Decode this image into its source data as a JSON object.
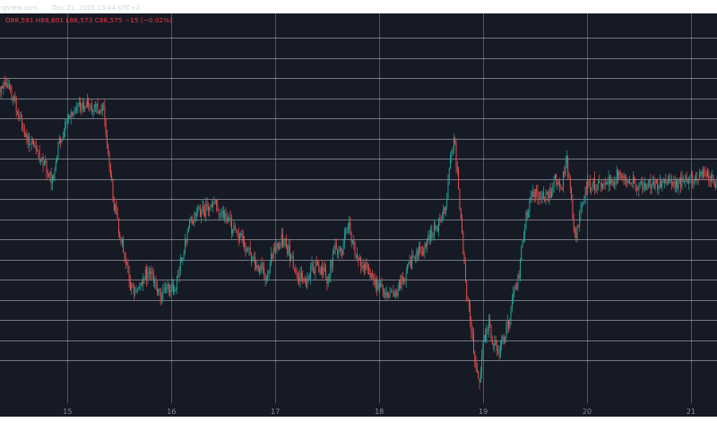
{
  "header": {
    "source": "dingView.com,",
    "datetime": "Dec 21, 2025 13:44 UTC+2",
    "ohlc": "O88,591  H88,601  L88,573  C88,575  −15 (−0.02%)"
  },
  "colors": {
    "background": "#161a25",
    "grid": "#bfc3cc",
    "up": "#26a69a",
    "down": "#ef5350",
    "axis_text": "#868993",
    "ohlc_text": "#f23645"
  },
  "chart_data": {
    "type": "line",
    "title": "",
    "xlabel": "",
    "ylabel": "",
    "x_ticks": [
      "15",
      "16",
      "17",
      "18",
      "19",
      "20",
      "21"
    ],
    "x_unit": "day of month (Dec 2025)",
    "x_range": [
      14.35,
      21.25
    ],
    "y_range": [
      -5.3,
      43.0
    ],
    "y_note": "price tick labels are not visible in the screenshot; values are relative levels read against the horizontal gridlines",
    "grid": true,
    "series": [
      {
        "x": [
          14.35,
          14.45,
          14.55,
          14.62,
          14.7,
          14.78,
          14.85,
          14.92,
          15.0,
          15.1,
          15.17,
          15.22,
          15.27,
          15.35,
          15.45,
          15.55,
          15.6,
          15.64,
          15.7,
          15.75,
          15.8,
          15.85,
          15.9,
          15.96,
          16.03,
          16.1,
          16.18,
          16.25,
          16.32,
          16.4,
          16.5,
          16.6,
          16.7,
          16.8,
          16.9,
          16.98,
          17.05,
          17.12,
          17.2,
          17.28,
          17.35,
          17.42,
          17.5,
          17.58,
          17.64,
          17.68,
          17.71,
          17.74,
          17.78,
          17.82,
          17.9,
          17.98,
          18.05,
          18.12,
          18.2,
          18.28,
          18.35,
          18.42,
          18.5,
          18.58,
          18.64,
          18.68,
          18.72,
          18.76,
          18.8,
          18.84,
          18.88,
          18.92,
          18.96,
          19.0,
          19.05,
          19.1,
          19.15,
          19.2,
          19.25,
          19.3,
          19.35,
          19.4,
          19.45,
          19.5,
          19.55,
          19.6,
          19.65,
          19.7,
          19.73,
          19.76,
          19.8,
          19.84,
          19.88,
          19.92,
          19.96,
          20.0,
          20.1,
          20.2,
          20.3,
          20.4,
          20.5,
          20.6,
          20.7,
          20.8,
          20.9,
          21.0,
          21.1,
          21.18,
          21.25
        ],
        "y": [
          33.8,
          33.5,
          29.5,
          27.0,
          26.0,
          24.5,
          22.2,
          27.0,
          30.3,
          31.1,
          32.0,
          31.5,
          31.4,
          31.0,
          19.0,
          13.0,
          9.5,
          8.2,
          8.8,
          10.6,
          11.0,
          9.5,
          7.8,
          9.3,
          9.0,
          12.8,
          16.8,
          18.6,
          18.6,
          19.4,
          18.1,
          16.1,
          14.6,
          12.0,
          10.5,
          13.2,
          15.3,
          13.8,
          11.0,
          9.5,
          11.5,
          11.7,
          10.0,
          14.2,
          13.0,
          16.0,
          17.5,
          14.5,
          13.0,
          12.0,
          11.0,
          9.5,
          8.0,
          7.9,
          9.3,
          11.5,
          13.0,
          14.0,
          15.8,
          17.2,
          19.2,
          25.0,
          27.6,
          21.5,
          15.0,
          8.5,
          4.5,
          0.2,
          -3.2,
          2.0,
          4.5,
          2.0,
          1.0,
          3.0,
          5.0,
          8.4,
          11.2,
          17.0,
          19.5,
          21.0,
          20.5,
          20.0,
          20.8,
          22.5,
          21.5,
          21.8,
          25.0,
          21.0,
          15.0,
          17.0,
          19.6,
          21.8,
          21.9,
          22.0,
          23.0,
          22.6,
          21.6,
          21.6,
          22.0,
          22.4,
          22.0,
          22.5,
          23.0,
          22.5,
          21.8
        ]
      }
    ]
  }
}
